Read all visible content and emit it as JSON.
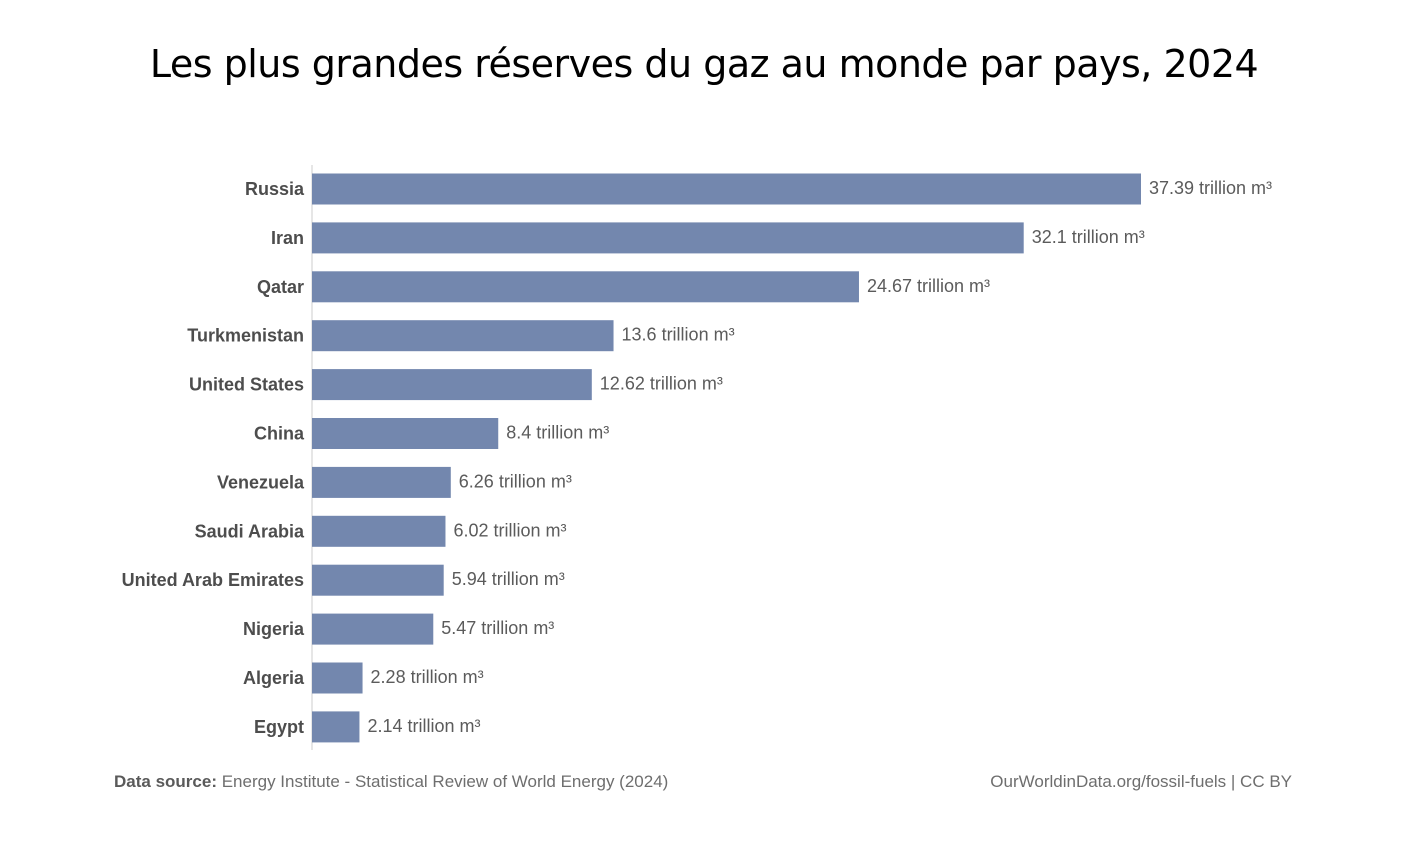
{
  "chart_data": {
    "type": "bar",
    "orientation": "horizontal",
    "title": "Les plus grandes réserves du gaz au monde par pays, 2024",
    "categories": [
      "Russia",
      "Iran",
      "Qatar",
      "Turkmenistan",
      "United States",
      "China",
      "Venezuela",
      "Saudi Arabia",
      "United Arab Emirates",
      "Nigeria",
      "Algeria",
      "Egypt"
    ],
    "values": [
      37.39,
      32.1,
      24.67,
      13.6,
      12.62,
      8.4,
      6.26,
      6.02,
      5.94,
      5.47,
      2.28,
      2.14
    ],
    "value_labels": [
      "37.39 trillion m³",
      "32.1 trillion m³",
      "24.67 trillion m³",
      "13.6 trillion m³",
      "12.62 trillion m³",
      "8.4 trillion m³",
      "6.26 trillion m³",
      "6.02 trillion m³",
      "5.94 trillion m³",
      "5.47 trillion m³",
      "2.28 trillion m³",
      "2.14 trillion m³"
    ],
    "xlim": [
      0,
      37.39
    ],
    "bar_color": "#7387ae",
    "axis_color": "#cccccc",
    "grid": false,
    "legend": "none"
  },
  "footer": {
    "source_label": "Data source:",
    "source_text": "Energy Institute - Statistical Review of World Energy (2024)",
    "credit": "OurWorldinData.org/fossil-fuels | CC BY"
  }
}
